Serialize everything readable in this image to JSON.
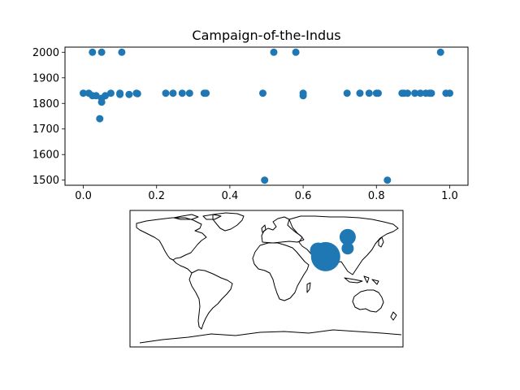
{
  "chart_data": [
    {
      "type": "scatter",
      "title": "Campaign-of-the-Indus",
      "xlabel": "",
      "ylabel": "",
      "xlim": [
        -0.05,
        1.05
      ],
      "ylim": [
        1480,
        2020
      ],
      "xticks": [
        0.0,
        0.2,
        0.4,
        0.6,
        0.8,
        1.0
      ],
      "xtick_labels": [
        "0.0",
        "0.2",
        "0.4",
        "0.6",
        "0.8",
        "1.0"
      ],
      "yticks": [
        1500,
        1600,
        1700,
        1800,
        1900,
        2000
      ],
      "ytick_labels": [
        "1500",
        "1600",
        "1700",
        "1800",
        "1900",
        "2000"
      ],
      "grid": false,
      "color": "#1f77b4",
      "points": [
        {
          "x": 0.0,
          "y": 1840
        },
        {
          "x": 0.015,
          "y": 1840
        },
        {
          "x": 0.025,
          "y": 1830
        },
        {
          "x": 0.025,
          "y": 2000
        },
        {
          "x": 0.035,
          "y": 1830
        },
        {
          "x": 0.045,
          "y": 1740
        },
        {
          "x": 0.05,
          "y": 1820
        },
        {
          "x": 0.05,
          "y": 1805
        },
        {
          "x": 0.05,
          "y": 2000
        },
        {
          "x": 0.06,
          "y": 1830
        },
        {
          "x": 0.075,
          "y": 1840
        },
        {
          "x": 0.1,
          "y": 1840
        },
        {
          "x": 0.1,
          "y": 1835
        },
        {
          "x": 0.105,
          "y": 2000
        },
        {
          "x": 0.125,
          "y": 1835
        },
        {
          "x": 0.145,
          "y": 1840
        },
        {
          "x": 0.148,
          "y": 1838
        },
        {
          "x": 0.225,
          "y": 1840
        },
        {
          "x": 0.245,
          "y": 1840
        },
        {
          "x": 0.27,
          "y": 1840
        },
        {
          "x": 0.29,
          "y": 1840
        },
        {
          "x": 0.33,
          "y": 1840
        },
        {
          "x": 0.335,
          "y": 1840
        },
        {
          "x": 0.49,
          "y": 1840
        },
        {
          "x": 0.495,
          "y": 1500
        },
        {
          "x": 0.52,
          "y": 2000
        },
        {
          "x": 0.58,
          "y": 2000
        },
        {
          "x": 0.6,
          "y": 1840
        },
        {
          "x": 0.6,
          "y": 1830
        },
        {
          "x": 0.72,
          "y": 1840
        },
        {
          "x": 0.755,
          "y": 1840
        },
        {
          "x": 0.78,
          "y": 1840
        },
        {
          "x": 0.8,
          "y": 1840
        },
        {
          "x": 0.805,
          "y": 1840
        },
        {
          "x": 0.83,
          "y": 1500
        },
        {
          "x": 0.87,
          "y": 1840
        },
        {
          "x": 0.875,
          "y": 1840
        },
        {
          "x": 0.885,
          "y": 1840
        },
        {
          "x": 0.905,
          "y": 1840
        },
        {
          "x": 0.92,
          "y": 1840
        },
        {
          "x": 0.935,
          "y": 1840
        },
        {
          "x": 0.945,
          "y": 1840
        },
        {
          "x": 0.95,
          "y": 1840
        },
        {
          "x": 0.975,
          "y": 2000
        },
        {
          "x": 0.99,
          "y": 1840
        },
        {
          "x": 1.0,
          "y": 1840
        }
      ]
    },
    {
      "type": "map",
      "projection": "equirectangular",
      "color": "#1f77b4",
      "markers": [
        {
          "lon": 68,
          "lat": 37,
          "size": "medium"
        },
        {
          "lon": 78,
          "lat": 29,
          "size": "large"
        },
        {
          "lon": 74,
          "lat": 33,
          "size": "medium"
        },
        {
          "lon": 107,
          "lat": 55,
          "size": "medium"
        },
        {
          "lon": 107,
          "lat": 40,
          "size": "small"
        }
      ]
    }
  ]
}
